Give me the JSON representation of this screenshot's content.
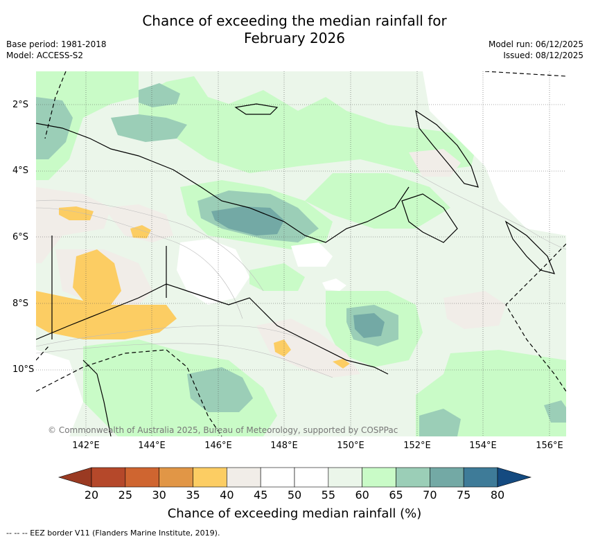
{
  "title_line1": "Chance of exceeding the median rainfall for",
  "title_line2": "February 2026",
  "meta_left": [
    "Base period: 1981-2018",
    "Model: ACCESS-S2"
  ],
  "meta_right": [
    "Model run: 06/12/2025",
    "Issued: 08/12/2025"
  ],
  "map": {
    "lat_labels": [
      "2°S",
      "4°S",
      "6°S",
      "8°S",
      "10°S"
    ],
    "lon_labels": [
      "142°E",
      "144°E",
      "146°E",
      "148°E",
      "150°E",
      "152°E",
      "154°E",
      "156°E"
    ],
    "copyright": "© Commonwealth of Australia 2025, Bureau of Meteorology, supported by COSPPac"
  },
  "colorbar": {
    "labels": [
      "20",
      "25",
      "30",
      "35",
      "40",
      "45",
      "50",
      "55",
      "60",
      "65",
      "70",
      "75",
      "80"
    ],
    "colors": [
      "#b5482a",
      "#cf6530",
      "#e19646",
      "#fccd63",
      "#f1ede8",
      "#ffffff",
      "#ffffff",
      "#ebf6ea",
      "#c9fbc7",
      "#9bceb7",
      "#73a9a5",
      "#3e7b98"
    ],
    "under_color": "#9a3a22",
    "over_color": "#144a80",
    "title": "Chance of exceeding median rainfall (%)"
  },
  "footer": "--  --  -- EEZ border V11 (Flanders Marine Institute, 2019)."
}
